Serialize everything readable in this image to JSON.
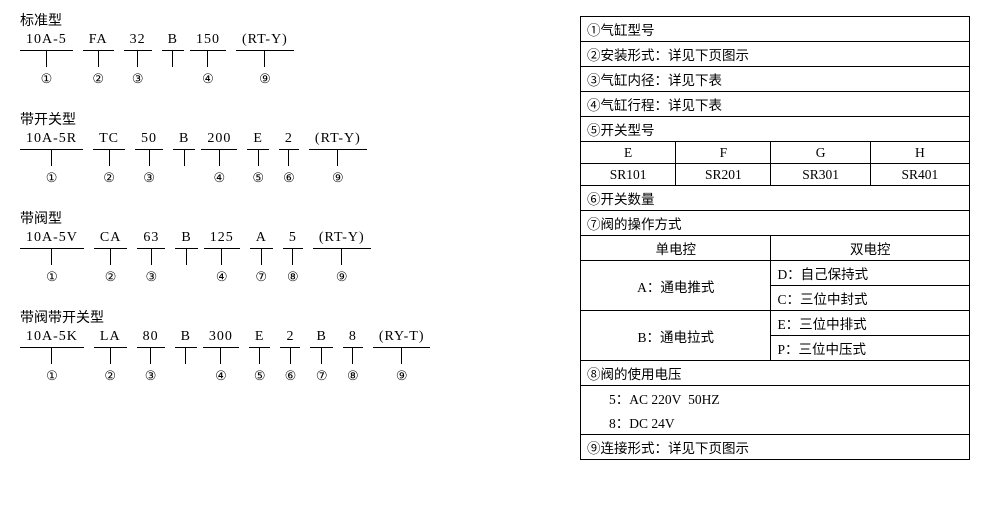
{
  "variants": [
    {
      "title": "标准型",
      "segments": [
        {
          "text": "10A-5",
          "idx": "①"
        },
        {
          "text": "FA",
          "idx": "②"
        },
        {
          "text": "32",
          "idx": "③"
        },
        {
          "text": "B",
          "idx": ""
        },
        {
          "text": "150",
          "idx": "④"
        },
        {
          "text": "(RT-Y)",
          "idx": "⑨"
        }
      ]
    },
    {
      "title": "带开关型",
      "segments": [
        {
          "text": "10A-5R",
          "idx": "①"
        },
        {
          "text": "TC",
          "idx": "②"
        },
        {
          "text": "50",
          "idx": "③"
        },
        {
          "text": "B",
          "idx": ""
        },
        {
          "text": "200",
          "idx": "④"
        },
        {
          "text": "E",
          "idx": "⑤"
        },
        {
          "text": "2",
          "idx": "⑥"
        },
        {
          "text": "(RT-Y)",
          "idx": "⑨"
        }
      ]
    },
    {
      "title": "带阀型",
      "segments": [
        {
          "text": "10A-5V",
          "idx": "①"
        },
        {
          "text": "CA",
          "idx": "②"
        },
        {
          "text": "63",
          "idx": "③"
        },
        {
          "text": "B",
          "idx": ""
        },
        {
          "text": "125",
          "idx": "④"
        },
        {
          "text": "A",
          "idx": "⑦"
        },
        {
          "text": "5",
          "idx": "⑧"
        },
        {
          "text": "(RT-Y)",
          "idx": "⑨"
        }
      ]
    },
    {
      "title": "带阀带开关型",
      "segments": [
        {
          "text": "10A-5K",
          "idx": "①"
        },
        {
          "text": "LA",
          "idx": "②"
        },
        {
          "text": "80",
          "idx": "③"
        },
        {
          "text": "B",
          "idx": ""
        },
        {
          "text": "300",
          "idx": "④"
        },
        {
          "text": "E",
          "idx": "⑤"
        },
        {
          "text": "2",
          "idx": "⑥"
        },
        {
          "text": "B",
          "idx": "⑦"
        },
        {
          "text": "8",
          "idx": "⑧"
        },
        {
          "text": "(RY-T)",
          "idx": "⑨"
        }
      ]
    }
  ],
  "ref": {
    "r1": "①气缸型号",
    "r2": "②安装形式：详见下页图示",
    "r3": "③气缸内径：详见下表",
    "r4": "④气缸行程：详见下表",
    "r5": "⑤开关型号",
    "sw_cols": [
      "E",
      "F",
      "G",
      "H"
    ],
    "sw_vals": [
      "SR101",
      "SR201",
      "SR301",
      "SR401"
    ],
    "r6": "⑥开关数量",
    "r7": "⑦阀的操作方式",
    "op_single": "单电控",
    "op_double": "双电控",
    "opA": "A：通电推式",
    "opD": "D：自己保持式",
    "opC": "C：三位中封式",
    "opB": "B：通电拉式",
    "opE": "E：三位中排式",
    "opP": "P：三位中压式",
    "r8": "⑧阀的使用电压",
    "r8a": "5：AC 220V  50HZ",
    "r8b": "8：DC 24V",
    "r9": "⑨连接形式：详见下页图示"
  }
}
